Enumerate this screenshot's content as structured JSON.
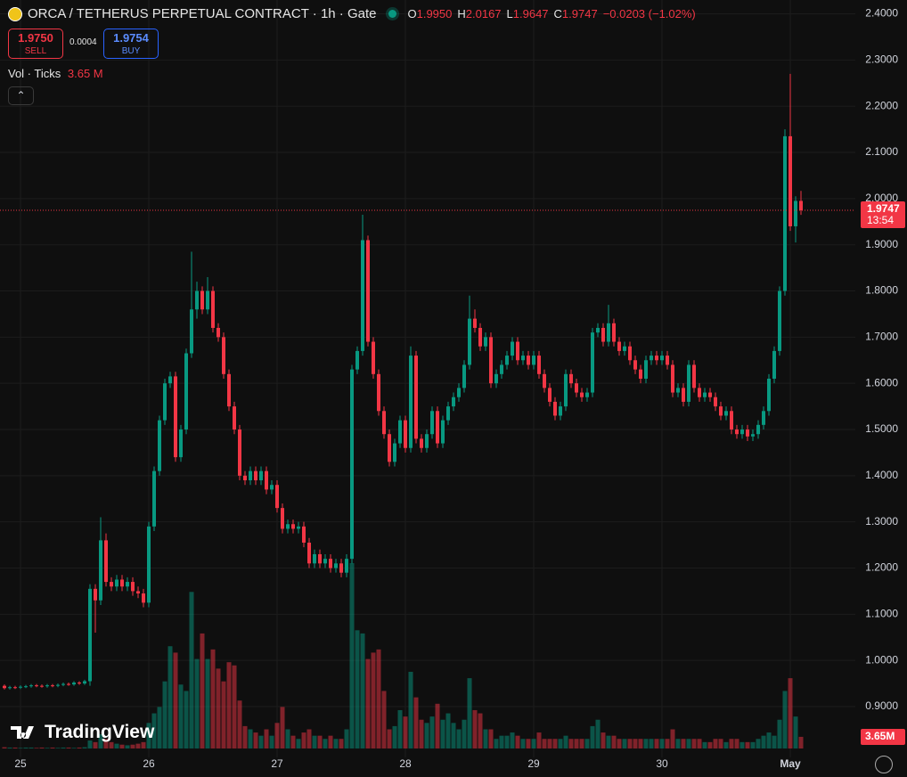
{
  "chart_data": {
    "type": "candlestick",
    "title": "ORCA / TETHERUS PERPETUAL CONTRACT · 1h · Gate",
    "ohlc_legend": [
      {
        "key": "O",
        "value": "1.9950"
      },
      {
        "key": "H",
        "value": "2.0167"
      },
      {
        "key": "L",
        "value": "1.9647"
      },
      {
        "key": "C",
        "value": "1.9747"
      }
    ],
    "change": "−0.0203 (−1.02%)",
    "sell": {
      "price": "1.9750",
      "label": "SELL"
    },
    "spread": "0.0004",
    "buy": {
      "price": "1.9754",
      "label": "BUY"
    },
    "volume_legend": {
      "label": "Vol · Ticks",
      "value": "3.65 M"
    },
    "price_tag": {
      "price": "1.9747",
      "countdown": "13:54"
    },
    "volume_tag": "3.65M",
    "logo": "TradingView",
    "up_color": "#089981",
    "down_color": "#f23645",
    "grid": true,
    "ylim": [
      0.79,
      2.43
    ],
    "yticks": [
      {
        "value": 0.9,
        "label": "0.9000"
      },
      {
        "value": 1.0,
        "label": "1.0000"
      },
      {
        "value": 1.1,
        "label": "1.1000"
      },
      {
        "value": 1.2,
        "label": "1.2000"
      },
      {
        "value": 1.3,
        "label": "1.3000"
      },
      {
        "value": 1.4,
        "label": "1.4000"
      },
      {
        "value": 1.5,
        "label": "1.5000"
      },
      {
        "value": 1.6,
        "label": "1.6000"
      },
      {
        "value": 1.7,
        "label": "1.7000"
      },
      {
        "value": 1.8,
        "label": "1.8000"
      },
      {
        "value": 1.9,
        "label": "1.9000"
      },
      {
        "value": 2.0,
        "label": "2.0000"
      },
      {
        "value": 2.1,
        "label": "2.1000"
      },
      {
        "value": 2.2,
        "label": "2.2000"
      },
      {
        "value": 2.3,
        "label": "2.3000"
      },
      {
        "value": 2.4,
        "label": "2.4000"
      }
    ],
    "categories": [
      null,
      null,
      null,
      "25",
      null,
      null,
      null,
      null,
      null,
      null,
      null,
      null,
      null,
      null,
      null,
      null,
      null,
      null,
      null,
      null,
      null,
      null,
      null,
      null,
      null,
      null,
      null,
      "26",
      null,
      null,
      null,
      null,
      null,
      null,
      null,
      null,
      null,
      null,
      null,
      null,
      null,
      null,
      null,
      null,
      null,
      null,
      null,
      null,
      null,
      null,
      null,
      "27",
      null,
      null,
      null,
      null,
      null,
      null,
      null,
      null,
      null,
      null,
      null,
      null,
      null,
      null,
      null,
      null,
      null,
      null,
      null,
      null,
      null,
      null,
      null,
      "28",
      null,
      null,
      null,
      null,
      null,
      null,
      null,
      null,
      null,
      null,
      null,
      null,
      null,
      null,
      null,
      null,
      null,
      null,
      null,
      null,
      null,
      null,
      null,
      "29",
      null,
      null,
      null,
      null,
      null,
      null,
      null,
      null,
      null,
      null,
      null,
      null,
      null,
      null,
      null,
      null,
      null,
      null,
      null,
      null,
      null,
      null,
      null,
      "30",
      null,
      null,
      null,
      null,
      null,
      null,
      null,
      null,
      null,
      null,
      null,
      null,
      null,
      null,
      null,
      null,
      null,
      null,
      null,
      null,
      null,
      null,
      null,
      "May",
      null,
      null
    ],
    "open": [
      0.945,
      0.94,
      0.942,
      0.941,
      0.943,
      0.944,
      0.946,
      0.945,
      0.944,
      0.946,
      0.945,
      0.947,
      0.949,
      0.948,
      0.952,
      0.95,
      0.955,
      1.155,
      1.13,
      1.26,
      1.17,
      1.16,
      1.175,
      1.16,
      1.17,
      1.15,
      1.145,
      1.125,
      1.29,
      1.41,
      1.52,
      1.6,
      1.615,
      1.44,
      1.5,
      1.665,
      1.76,
      1.8,
      1.76,
      1.8,
      1.72,
      1.7,
      1.62,
      1.55,
      1.5,
      1.4,
      1.39,
      1.41,
      1.39,
      1.41,
      1.37,
      1.38,
      1.33,
      1.285,
      1.295,
      1.285,
      1.29,
      1.255,
      1.21,
      1.23,
      1.21,
      1.22,
      1.2,
      1.21,
      1.19,
      1.22,
      1.63,
      1.67,
      1.91,
      1.69,
      1.62,
      1.54,
      1.49,
      1.43,
      1.47,
      1.52,
      1.46,
      1.66,
      1.48,
      1.46,
      1.49,
      1.54,
      1.47,
      1.52,
      1.55,
      1.57,
      1.59,
      1.64,
      1.74,
      1.72,
      1.68,
      1.7,
      1.6,
      1.62,
      1.64,
      1.66,
      1.69,
      1.65,
      1.66,
      1.64,
      1.66,
      1.62,
      1.59,
      1.56,
      1.53,
      1.55,
      1.62,
      1.6,
      1.58,
      1.57,
      1.58,
      1.71,
      1.72,
      1.69,
      1.73,
      1.69,
      1.67,
      1.68,
      1.65,
      1.63,
      1.61,
      1.65,
      1.66,
      1.65,
      1.66,
      1.64,
      1.58,
      1.59,
      1.56,
      1.64,
      1.59,
      1.57,
      1.58,
      1.57,
      1.55,
      1.53,
      1.54,
      1.5,
      1.49,
      1.5,
      1.485,
      1.49,
      1.51,
      1.54,
      1.61,
      1.67,
      1.8,
      2.135,
      1.94,
      1.995
    ],
    "high": [
      0.948,
      0.945,
      0.945,
      0.946,
      0.947,
      0.949,
      0.949,
      0.948,
      0.949,
      0.949,
      0.95,
      0.952,
      0.952,
      0.955,
      0.955,
      0.958,
      1.165,
      1.165,
      1.31,
      1.275,
      1.18,
      1.185,
      1.185,
      1.18,
      1.18,
      1.16,
      1.155,
      1.3,
      1.42,
      1.53,
      1.61,
      1.625,
      1.625,
      1.51,
      1.675,
      1.885,
      1.82,
      1.81,
      1.83,
      1.81,
      1.73,
      1.71,
      1.63,
      1.56,
      1.51,
      1.41,
      1.42,
      1.42,
      1.42,
      1.42,
      1.39,
      1.39,
      1.34,
      1.305,
      1.305,
      1.3,
      1.3,
      1.265,
      1.24,
      1.24,
      1.23,
      1.23,
      1.22,
      1.22,
      1.23,
      1.64,
      1.68,
      1.965,
      1.92,
      1.7,
      1.63,
      1.55,
      1.5,
      1.48,
      1.53,
      1.53,
      1.68,
      1.67,
      1.49,
      1.5,
      1.55,
      1.55,
      1.53,
      1.56,
      1.58,
      1.6,
      1.65,
      1.79,
      1.76,
      1.73,
      1.71,
      1.71,
      1.63,
      1.65,
      1.67,
      1.7,
      1.7,
      1.67,
      1.67,
      1.67,
      1.67,
      1.63,
      1.6,
      1.57,
      1.56,
      1.63,
      1.63,
      1.61,
      1.59,
      1.59,
      1.72,
      1.73,
      1.73,
      1.77,
      1.74,
      1.7,
      1.69,
      1.69,
      1.66,
      1.64,
      1.66,
      1.67,
      1.67,
      1.67,
      1.67,
      1.65,
      1.6,
      1.6,
      1.65,
      1.65,
      1.6,
      1.59,
      1.59,
      1.58,
      1.56,
      1.55,
      1.55,
      1.51,
      1.51,
      1.51,
      1.5,
      1.52,
      1.55,
      1.62,
      1.68,
      1.81,
      2.15,
      2.27,
      2.005,
      2.0167
    ],
    "low": [
      0.937,
      0.937,
      0.938,
      0.938,
      0.94,
      0.941,
      0.942,
      0.941,
      0.941,
      0.942,
      0.942,
      0.944,
      0.945,
      0.945,
      0.947,
      0.947,
      0.945,
      1.06,
      1.12,
      1.16,
      1.15,
      1.15,
      1.15,
      1.15,
      1.14,
      1.135,
      1.115,
      1.115,
      1.28,
      1.4,
      1.51,
      1.59,
      1.43,
      1.43,
      1.49,
      1.655,
      1.74,
      1.75,
      1.75,
      1.71,
      1.69,
      1.61,
      1.54,
      1.49,
      1.39,
      1.38,
      1.38,
      1.38,
      1.38,
      1.36,
      1.36,
      1.32,
      1.275,
      1.275,
      1.275,
      1.275,
      1.245,
      1.2,
      1.2,
      1.2,
      1.2,
      1.19,
      1.19,
      1.18,
      1.18,
      1.21,
      1.62,
      1.66,
      1.68,
      1.61,
      1.53,
      1.48,
      1.42,
      1.42,
      1.46,
      1.45,
      1.45,
      1.47,
      1.45,
      1.45,
      1.48,
      1.46,
      1.46,
      1.51,
      1.54,
      1.56,
      1.58,
      1.63,
      1.71,
      1.67,
      1.67,
      1.59,
      1.59,
      1.61,
      1.63,
      1.65,
      1.64,
      1.64,
      1.63,
      1.63,
      1.61,
      1.58,
      1.55,
      1.52,
      1.52,
      1.54,
      1.59,
      1.57,
      1.56,
      1.56,
      1.57,
      1.7,
      1.68,
      1.68,
      1.68,
      1.66,
      1.66,
      1.64,
      1.62,
      1.6,
      1.6,
      1.64,
      1.64,
      1.64,
      1.63,
      1.57,
      1.57,
      1.55,
      1.55,
      1.58,
      1.56,
      1.56,
      1.56,
      1.54,
      1.52,
      1.52,
      1.49,
      1.48,
      1.48,
      1.475,
      1.475,
      1.48,
      1.5,
      1.53,
      1.6,
      1.66,
      1.79,
      1.93,
      1.905,
      1.9647
    ],
    "close": [
      0.94,
      0.942,
      0.941,
      0.943,
      0.944,
      0.946,
      0.945,
      0.944,
      0.946,
      0.945,
      0.947,
      0.949,
      0.948,
      0.952,
      0.95,
      0.955,
      1.155,
      1.13,
      1.26,
      1.17,
      1.16,
      1.175,
      1.16,
      1.17,
      1.15,
      1.145,
      1.125,
      1.29,
      1.41,
      1.52,
      1.6,
      1.615,
      1.44,
      1.5,
      1.665,
      1.76,
      1.8,
      1.76,
      1.8,
      1.72,
      1.7,
      1.62,
      1.55,
      1.5,
      1.4,
      1.39,
      1.41,
      1.39,
      1.41,
      1.37,
      1.38,
      1.33,
      1.285,
      1.295,
      1.285,
      1.29,
      1.255,
      1.21,
      1.23,
      1.21,
      1.22,
      1.2,
      1.21,
      1.19,
      1.22,
      1.63,
      1.67,
      1.91,
      1.69,
      1.62,
      1.54,
      1.49,
      1.43,
      1.47,
      1.52,
      1.46,
      1.66,
      1.48,
      1.46,
      1.49,
      1.54,
      1.47,
      1.52,
      1.55,
      1.57,
      1.59,
      1.64,
      1.74,
      1.72,
      1.68,
      1.7,
      1.6,
      1.62,
      1.64,
      1.66,
      1.69,
      1.65,
      1.66,
      1.64,
      1.66,
      1.62,
      1.59,
      1.56,
      1.53,
      1.55,
      1.62,
      1.6,
      1.58,
      1.57,
      1.58,
      1.71,
      1.72,
      1.69,
      1.73,
      1.69,
      1.67,
      1.68,
      1.65,
      1.63,
      1.61,
      1.65,
      1.66,
      1.65,
      1.66,
      1.64,
      1.58,
      1.59,
      1.56,
      1.64,
      1.59,
      1.57,
      1.58,
      1.57,
      1.55,
      1.53,
      1.54,
      1.5,
      1.49,
      1.5,
      1.485,
      1.49,
      1.51,
      1.54,
      1.61,
      1.67,
      1.8,
      2.135,
      1.94,
      1.995,
      1.9747
    ],
    "volume": [
      0.4,
      0.3,
      0.3,
      0.2,
      0.3,
      0.3,
      0.2,
      0.3,
      0.2,
      0.3,
      0.2,
      0.3,
      0.3,
      0.2,
      0.3,
      0.4,
      2.5,
      2.0,
      4.5,
      3.0,
      2.0,
      1.5,
      1.2,
      1.0,
      1.2,
      1.5,
      2.0,
      8,
      11,
      13,
      21,
      32,
      30,
      20,
      18,
      49,
      28,
      36,
      28,
      31,
      25,
      21,
      27,
      26,
      15,
      7,
      6,
      5,
      4,
      6,
      4,
      8,
      13,
      6,
      4,
      3,
      5,
      6,
      4,
      4,
      3,
      4,
      3,
      3,
      6,
      58,
      37,
      36,
      28,
      30,
      31,
      18,
      6,
      7,
      12,
      10,
      24,
      16,
      9,
      8,
      10,
      14,
      9,
      11,
      8,
      6,
      9,
      22,
      12,
      11,
      6,
      6,
      3,
      4,
      4,
      5,
      4,
      3,
      3,
      3,
      5,
      3,
      3,
      3,
      3,
      4,
      3,
      3,
      3,
      3,
      7,
      9,
      5,
      4,
      4,
      3,
      3,
      3,
      3,
      3,
      3,
      3,
      3,
      3,
      3,
      6,
      3,
      3,
      3,
      3,
      3,
      2,
      2,
      3,
      3,
      2,
      3,
      3,
      2,
      2,
      2,
      3,
      4,
      5,
      4,
      9,
      18,
      22,
      10,
      3.65
    ]
  }
}
